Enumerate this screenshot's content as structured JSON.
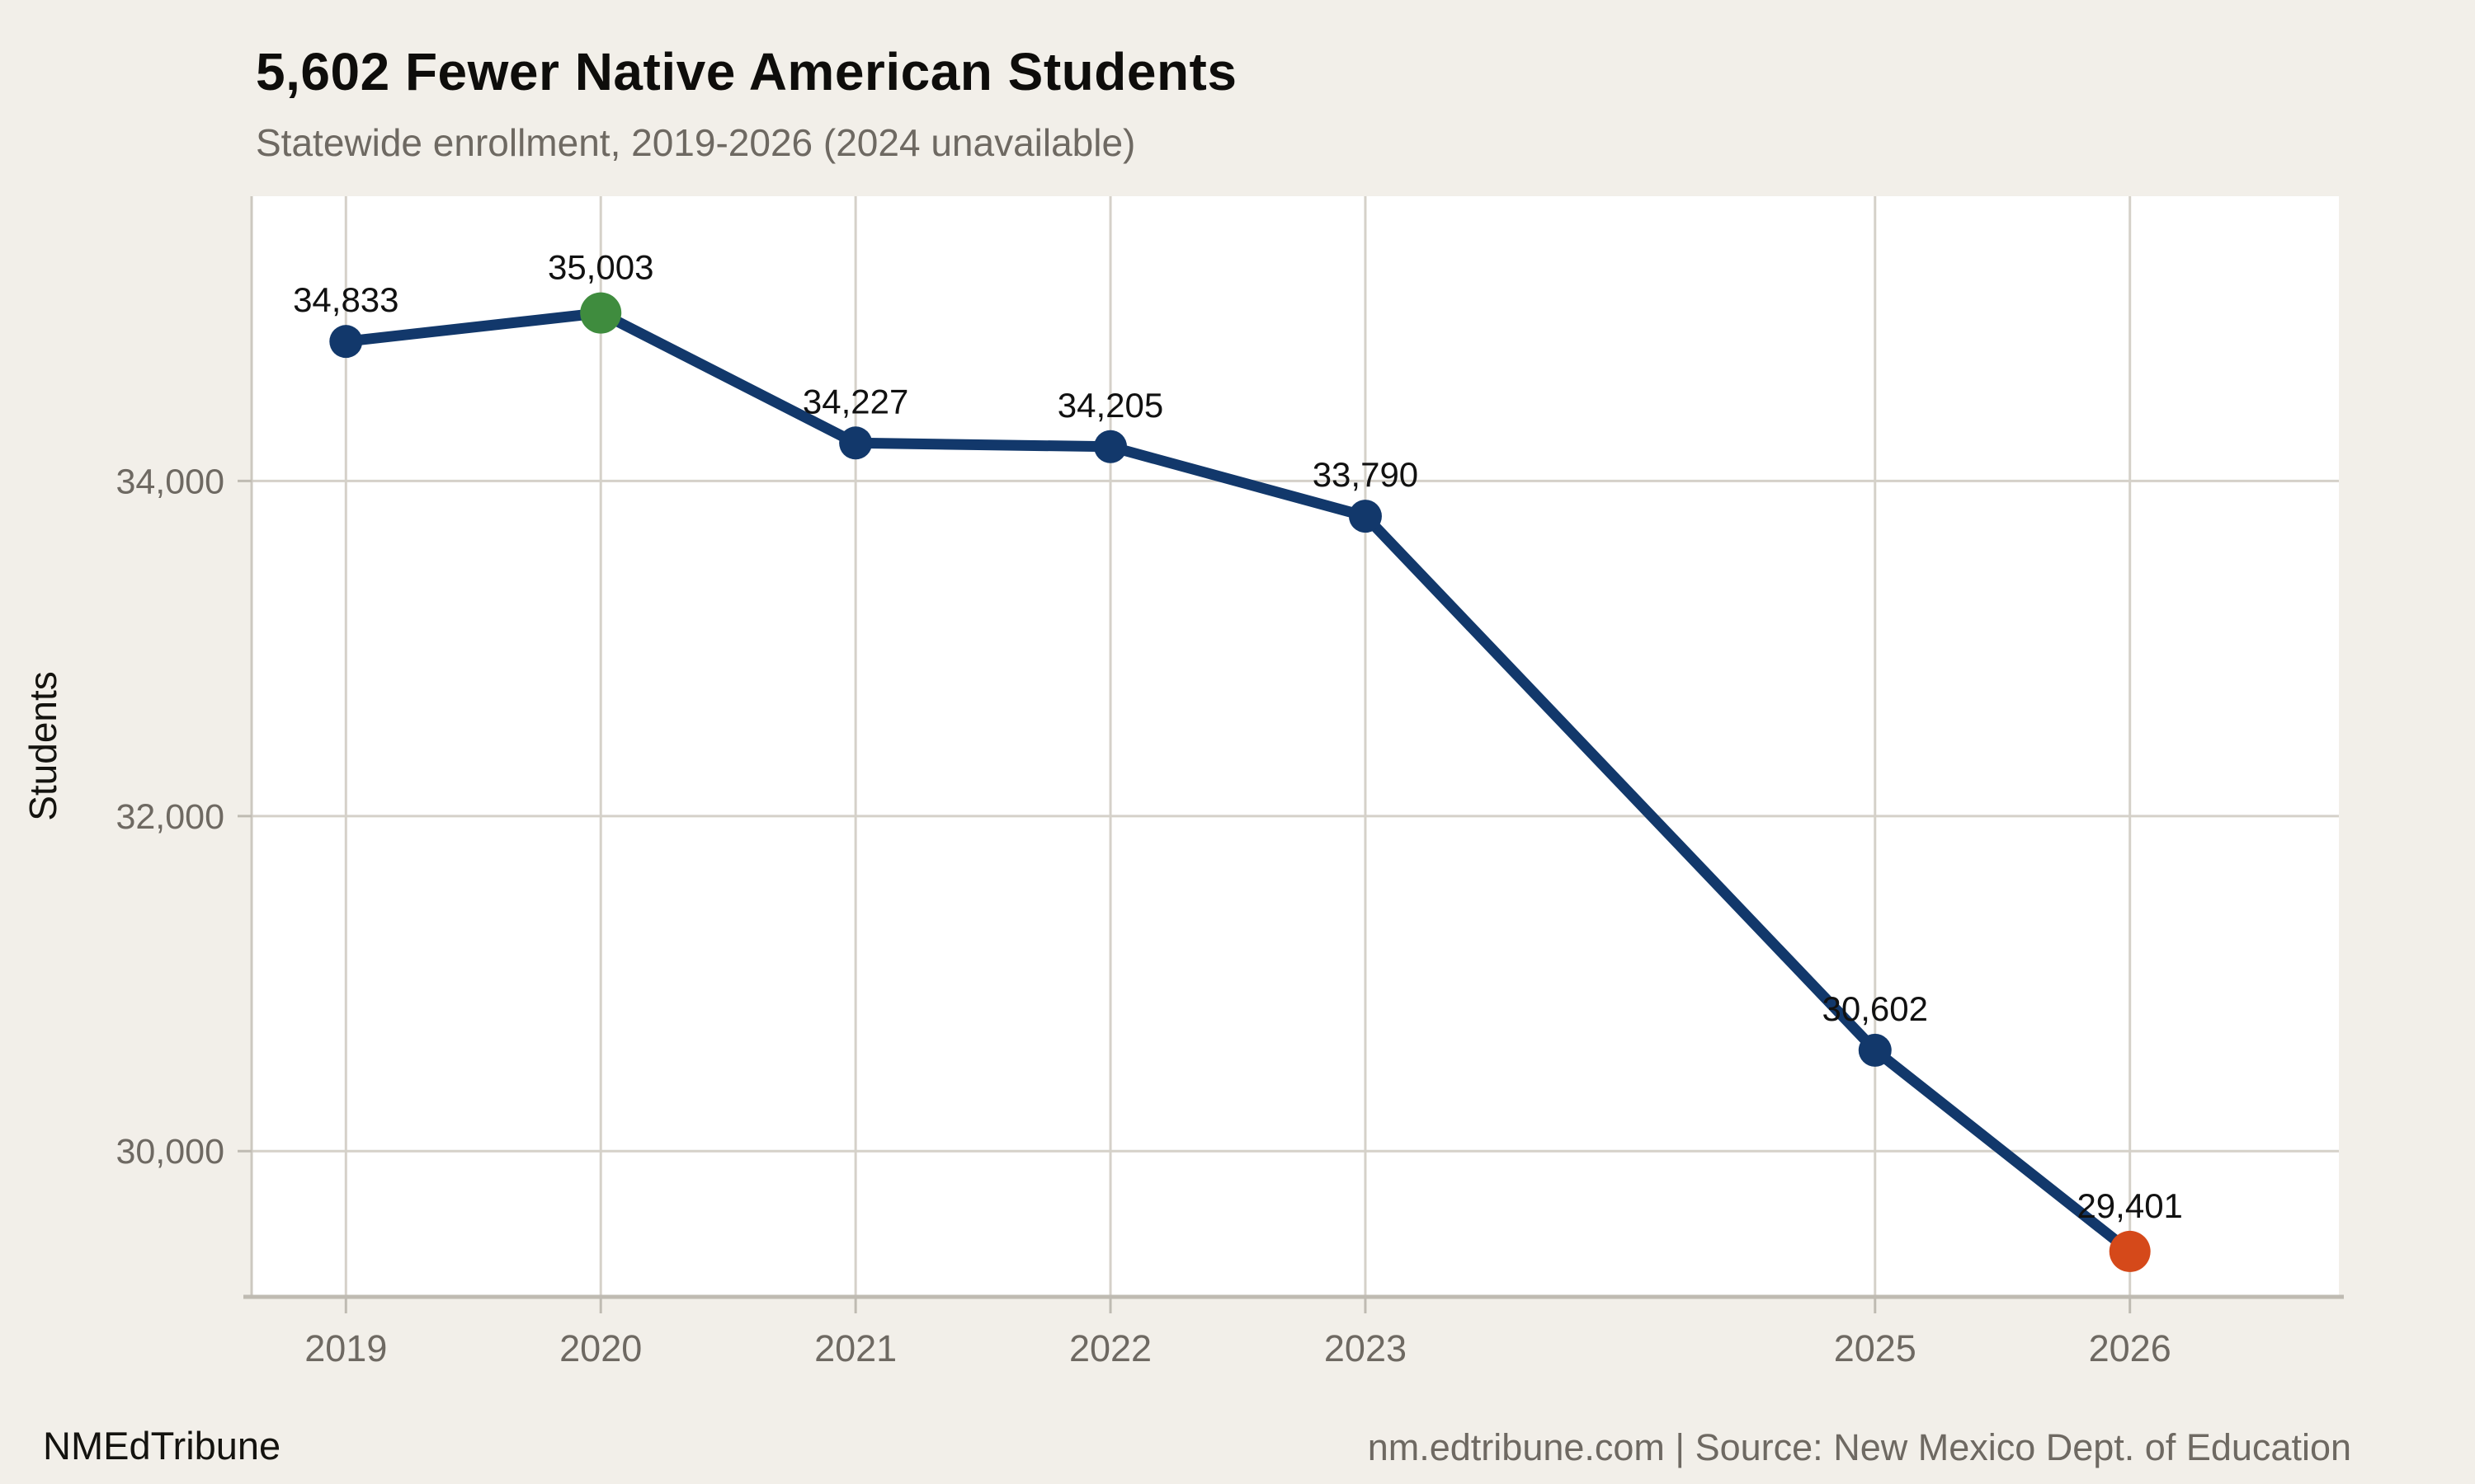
{
  "page": {
    "background": "#f2efe9"
  },
  "header": {
    "title": "5,602 Fewer Native American Students",
    "subtitle": "Statewide enrollment, 2019-2026 (2024 unavailable)"
  },
  "footer": {
    "brand": "NMEdTribune",
    "source": "nm.edtribune.com | Source: New Mexico Dept. of Education"
  },
  "chart_data": {
    "type": "line",
    "title": "5,602 Fewer Native American Students",
    "subtitle": "Statewide enrollment, 2019-2026 (2024 unavailable)",
    "ylabel": "Students",
    "xlabel": "",
    "x": [
      2019,
      2020,
      2021,
      2022,
      2023,
      2025,
      2026
    ],
    "x_tick_labels": [
      "2019",
      "2020",
      "2021",
      "2022",
      "2023",
      "2025",
      "2026"
    ],
    "values": [
      34833,
      35003,
      34227,
      34205,
      33790,
      30602,
      29401
    ],
    "value_labels": [
      "34,833",
      "35,003",
      "34,227",
      "34,205",
      "33,790",
      "30,602",
      "29,401"
    ],
    "point_colors": [
      "#12386b",
      "#3f8c3e",
      "#12386b",
      "#12386b",
      "#12386b",
      "#12386b",
      "#d5491a"
    ],
    "y_ticks": [
      30000,
      32000,
      34000
    ],
    "y_tick_labels": [
      "30,000",
      "32,000",
      "34,000"
    ],
    "xlim": [
      2018.63,
      2026.82
    ],
    "ylim": [
      29130,
      35700
    ],
    "grid": true,
    "legend": false,
    "line_color": "#12386b",
    "plot_background": "#ffffff",
    "gridline_color": "#d5d1c9",
    "axis_color": "#bfbbb2",
    "tick_label_color": "#6e6962",
    "value_label_color": "#111111",
    "axis_title_color": "#14130f"
  }
}
